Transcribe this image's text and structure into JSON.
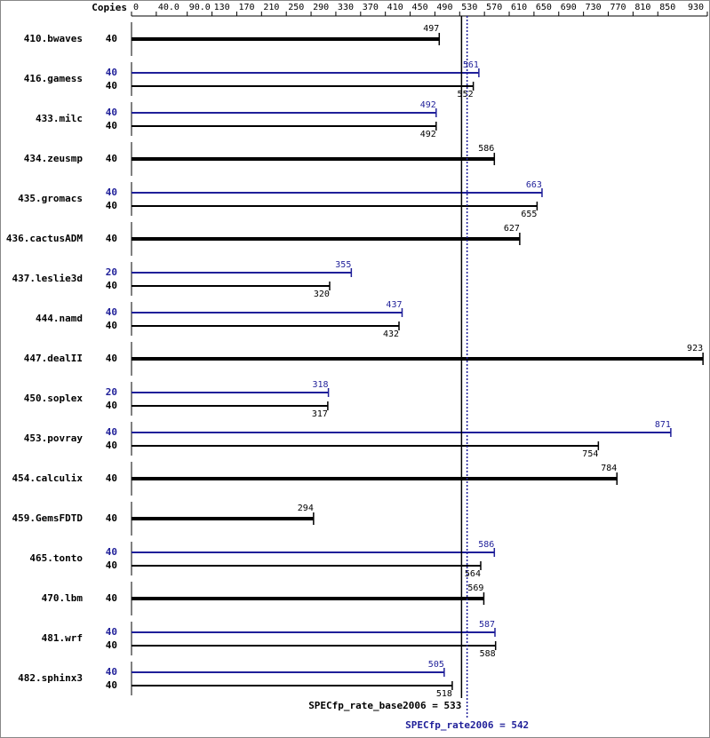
{
  "chart_data": {
    "type": "bar",
    "copies_label": "Copies",
    "categories": [
      "410.bwaves",
      "416.gamess",
      "433.milc",
      "434.zeusmp",
      "435.gromacs",
      "436.cactusADM",
      "437.leslie3d",
      "444.namd",
      "447.dealII",
      "450.soplex",
      "453.povray",
      "454.calculix",
      "459.GemsFDTD",
      "465.tonto",
      "470.lbm",
      "481.wrf",
      "482.sphinx3"
    ],
    "series": [
      {
        "color": "#1f1f99",
        "copies": [
          null,
          40,
          40,
          null,
          40,
          null,
          20,
          40,
          null,
          20,
          40,
          null,
          null,
          40,
          null,
          40,
          40
        ],
        "values": [
          null,
          561,
          492,
          null,
          663,
          null,
          355,
          437,
          null,
          318,
          871,
          null,
          null,
          586,
          null,
          587,
          505
        ]
      },
      {
        "color": "#000000",
        "copies": [
          40,
          40,
          40,
          40,
          40,
          40,
          40,
          40,
          40,
          40,
          40,
          40,
          40,
          40,
          40,
          40,
          40
        ],
        "values": [
          497,
          552,
          492,
          586,
          655,
          627,
          320,
          432,
          923,
          317,
          754,
          784,
          294,
          564,
          569,
          588,
          518
        ]
      }
    ],
    "xlim": [
      0,
      930
    ],
    "xticks": [
      0,
      {
        "value": 40,
        "label": "40.0"
      },
      {
        "value": 90,
        "label": "90.0"
      },
      130,
      170,
      210,
      250,
      290,
      330,
      370,
      410,
      450,
      490,
      530,
      570,
      610,
      650,
      690,
      730,
      770,
      810,
      850,
      930
    ],
    "metrics": [
      {
        "label": "SPECfp_rate_base2006 = 533",
        "value": 533,
        "color": "#000000"
      },
      {
        "label": "SPECfp_rate2006 = 542",
        "value": 542,
        "color": "#1f1f99"
      }
    ]
  }
}
